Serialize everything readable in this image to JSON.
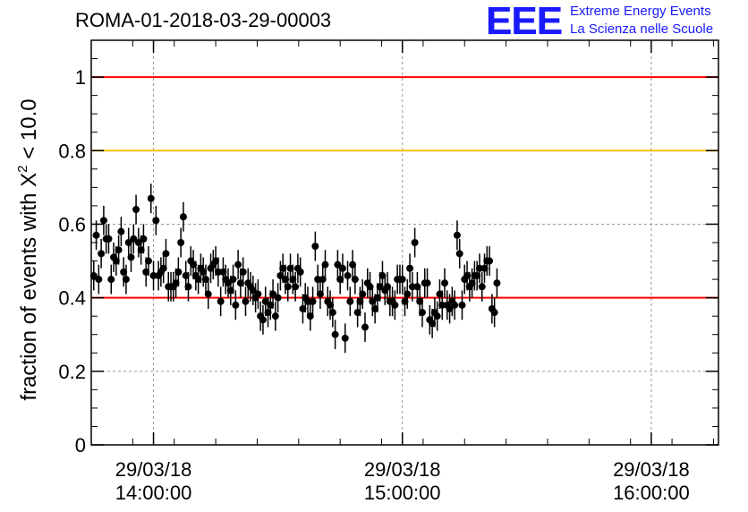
{
  "header": {
    "title": "ROMA-01-2018-03-29-00003",
    "logo_mark": "EEE",
    "logo_line1": "Extreme Energy Events",
    "logo_line2": "La Scienza nelle Scuole"
  },
  "colors": {
    "marker": "#000000",
    "red_line": "#ff0000",
    "yellow_line": "#ffc000",
    "grid": "#999999",
    "logo": "#1a1aff"
  },
  "chart_data": {
    "type": "scatter",
    "title": "ROMA-01-2018-03-29-00003",
    "ylabel": "fraction of events with χ² < 10.0",
    "ylabel_main": "fraction of events with X",
    "ylabel_sup": "2",
    "ylabel_tail": " < 10.0",
    "xlabel": "",
    "ylim": [
      0,
      1.1
    ],
    "yticks": [
      0,
      0.2,
      0.4,
      0.6,
      0.8,
      1
    ],
    "ytick_labels": [
      "0",
      "0.2",
      "0.4",
      "0.6",
      "0.8",
      "1"
    ],
    "xlim_minutes": [
      13.75,
      16.27
    ],
    "xticks": [
      {
        "hour": 14,
        "line1": "29/03/18",
        "line2": "14:00:00"
      },
      {
        "hour": 15,
        "line1": "29/03/18",
        "line2": "15:00:00"
      },
      {
        "hour": 16,
        "line1": "29/03/18",
        "line2": "16:00:00"
      }
    ],
    "grid": true,
    "hlines": [
      {
        "y": 1.0,
        "color": "red"
      },
      {
        "y": 0.8,
        "color": "yellow"
      },
      {
        "y": 0.4,
        "color": "red"
      }
    ],
    "error": 0.04,
    "series": [
      {
        "x_start_hour": 13.76,
        "x_step_hour": 0.01,
        "y": [
          0.46,
          0.57,
          0.45,
          0.52,
          0.61,
          0.56,
          0.56,
          0.45,
          0.51,
          0.5,
          0.53,
          0.58,
          0.47,
          0.45,
          0.55,
          0.51,
          0.56,
          0.64,
          0.55,
          0.53,
          0.56,
          0.47,
          0.5,
          0.67,
          0.46,
          0.61,
          0.46,
          0.47,
          0.48,
          0.52,
          0.43,
          0.43,
          0.43,
          0.44,
          0.47,
          0.55,
          0.62,
          0.46,
          0.43,
          0.5,
          0.49,
          0.46,
          0.45,
          0.48,
          0.47,
          0.45,
          0.41,
          0.48,
          0.49,
          0.5,
          0.47,
          0.39,
          0.47,
          0.45,
          0.44,
          0.42,
          0.45,
          0.38,
          0.49,
          0.44,
          0.47,
          0.39,
          0.44,
          0.43,
          0.42,
          0.4,
          0.41,
          0.35,
          0.34,
          0.39,
          0.36,
          0.38,
          0.41,
          0.35,
          0.4,
          0.46,
          0.48,
          0.45,
          0.43,
          0.48,
          0.45,
          0.43,
          0.48,
          0.47,
          0.37,
          0.4,
          0.39,
          0.35,
          0.39,
          0.54,
          0.45,
          0.41,
          0.45,
          0.49,
          0.39,
          0.38,
          0.36,
          0.3,
          0.49,
          0.45,
          0.48,
          0.29,
          0.46,
          0.39,
          0.49,
          0.45,
          0.36,
          0.39,
          0.41,
          0.32,
          0.44,
          0.43,
          0.39,
          0.37,
          0.4,
          0.43,
          0.46,
          0.42,
          0.43,
          0.39,
          0.39,
          0.38,
          0.45,
          0.45,
          0.45,
          0.39,
          0.41,
          0.48,
          0.43,
          0.55,
          0.43,
          0.39,
          0.36,
          0.44,
          0.44,
          0.34,
          0.33,
          0.36,
          0.35,
          0.41,
          0.38,
          0.44,
          0.38,
          0.37,
          0.39,
          0.38,
          0.57,
          0.52,
          0.38,
          0.45,
          0.46,
          0.43,
          0.44,
          0.46,
          0.46,
          0.48,
          0.43,
          0.48,
          0.5,
          0.5,
          0.37,
          0.36,
          0.44
        ]
      }
    ]
  }
}
